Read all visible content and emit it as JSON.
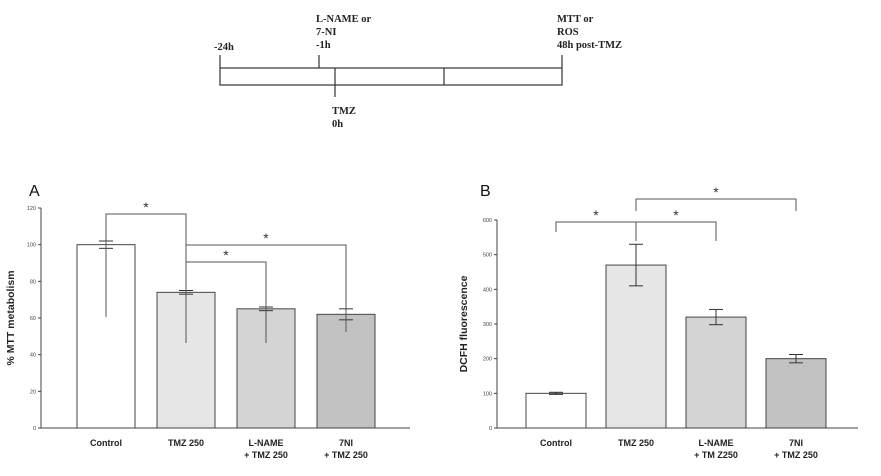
{
  "timeline": {
    "start_label": "-24h",
    "pretreat_label": [
      "L-NAME or",
      "7-NI",
      "-1h"
    ],
    "tmz_label": [
      "TMZ",
      "0h"
    ],
    "end_label": [
      "MTT or",
      "ROS",
      "48h post-TMZ"
    ]
  },
  "chart_data": [
    {
      "panel_label": "A",
      "type": "bar",
      "categories": [
        [
          "Control"
        ],
        [
          "TMZ 250"
        ],
        [
          "L-NAME",
          "+ TMZ 250"
        ],
        [
          "7NI",
          "+ TMZ 250"
        ]
      ],
      "values": [
        100,
        74,
        65,
        62
      ],
      "errors": [
        2,
        1,
        1,
        3
      ],
      "colors": [
        "#ffffff",
        "#e6e6e6",
        "#d4d4d4",
        "#c2c2c2"
      ],
      "xlabel": "",
      "ylabel": "% MTT metabolism",
      "ylim": [
        0,
        120
      ],
      "yticks": [
        "0",
        "20",
        "40",
        "60",
        "80",
        "100",
        "120"
      ],
      "significance": [
        {
          "from": 0,
          "to": 1,
          "label": "*"
        },
        {
          "from": 1,
          "to": 2,
          "label": "*"
        },
        {
          "from": 1,
          "to": 3,
          "label": "*"
        }
      ]
    },
    {
      "panel_label": "B",
      "type": "bar",
      "categories": [
        [
          "Control"
        ],
        [
          "TMZ 250"
        ],
        [
          "L-NAME",
          "+ TM Z250"
        ],
        [
          "7NI",
          "+ TMZ 250"
        ]
      ],
      "values": [
        100,
        470,
        320,
        200
      ],
      "errors": [
        3,
        60,
        22,
        12
      ],
      "colors": [
        "#ffffff",
        "#e6e6e6",
        "#d4d4d4",
        "#c2c2c2"
      ],
      "xlabel": "",
      "ylabel": "DCFH fluorescence",
      "ylim": [
        0,
        600
      ],
      "yticks": [
        "0",
        "100",
        "200",
        "300",
        "400",
        "500",
        "600"
      ],
      "significance": [
        {
          "from": 0,
          "to": 1,
          "label": "*"
        },
        {
          "from": 1,
          "to": 2,
          "label": "*"
        },
        {
          "from": 1,
          "to": 3,
          "label": "*"
        }
      ]
    }
  ]
}
